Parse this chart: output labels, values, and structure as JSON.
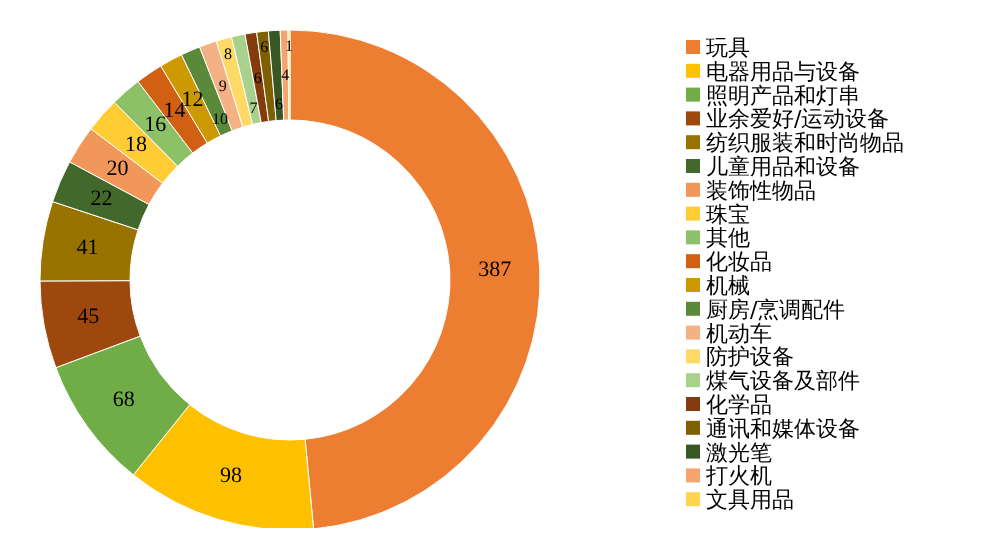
{
  "chart_data": {
    "type": "donut",
    "categories": [
      "玩具",
      "电器用品与设备",
      "照明产品和灯串",
      "业余爱好/运动设备",
      "纺织服装和时尚物品",
      "儿童用品和设备",
      "装饰性物品",
      "珠宝",
      "其他",
      "化妆品",
      "机械",
      "厨房/烹调配件",
      "机动车",
      "防护设备",
      "煤气设备及部件",
      "化学品",
      "通讯和媒体设备",
      "激光笔",
      "打火机",
      "文具用品"
    ],
    "values": [
      387,
      98,
      68,
      45,
      41,
      22,
      20,
      18,
      16,
      14,
      12,
      10,
      9,
      8,
      7,
      6,
      6,
      6,
      4,
      1
    ],
    "colors": [
      "#ed7d31",
      "#ffc000",
      "#70ad47",
      "#9e480e",
      "#997300",
      "#43682b",
      "#f1975a",
      "#ffcd33",
      "#8cc168",
      "#d26012",
      "#cc9a00",
      "#5a8a39",
      "#f4b183",
      "#ffd966",
      "#a9d18e",
      "#843c0c",
      "#7f6000",
      "#385723",
      "#f4a46e",
      "#ffd54f"
    ],
    "data_labels": true,
    "legend": "right"
  }
}
